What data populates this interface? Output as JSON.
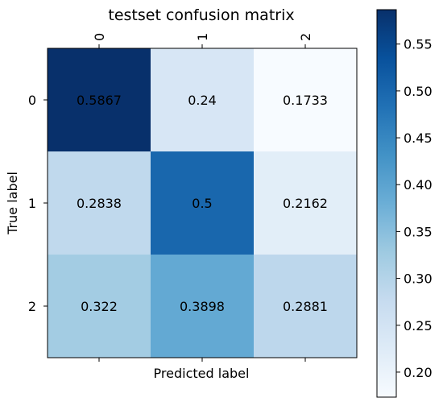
{
  "chart_data": {
    "type": "heatmap",
    "title": "testset confusion matrix",
    "xlabel": "Predicted label",
    "ylabel": "True label",
    "x_categories": [
      "0",
      "1",
      "2"
    ],
    "y_categories": [
      "0",
      "1",
      "2"
    ],
    "values": [
      [
        0.5867,
        0.24,
        0.1733
      ],
      [
        0.2838,
        0.5,
        0.2162
      ],
      [
        0.322,
        0.3898,
        0.2881
      ]
    ],
    "colormap": "Blues",
    "colorbar": {
      "range": [
        0.1733,
        0.5867
      ],
      "ticks": [
        0.2,
        0.25,
        0.3,
        0.35,
        0.4,
        0.45,
        0.5,
        0.55
      ],
      "tick_labels": [
        "0.20",
        "0.25",
        "0.30",
        "0.35",
        "0.40",
        "0.45",
        "0.50",
        "0.55"
      ]
    },
    "x_ticks_position": "top"
  }
}
